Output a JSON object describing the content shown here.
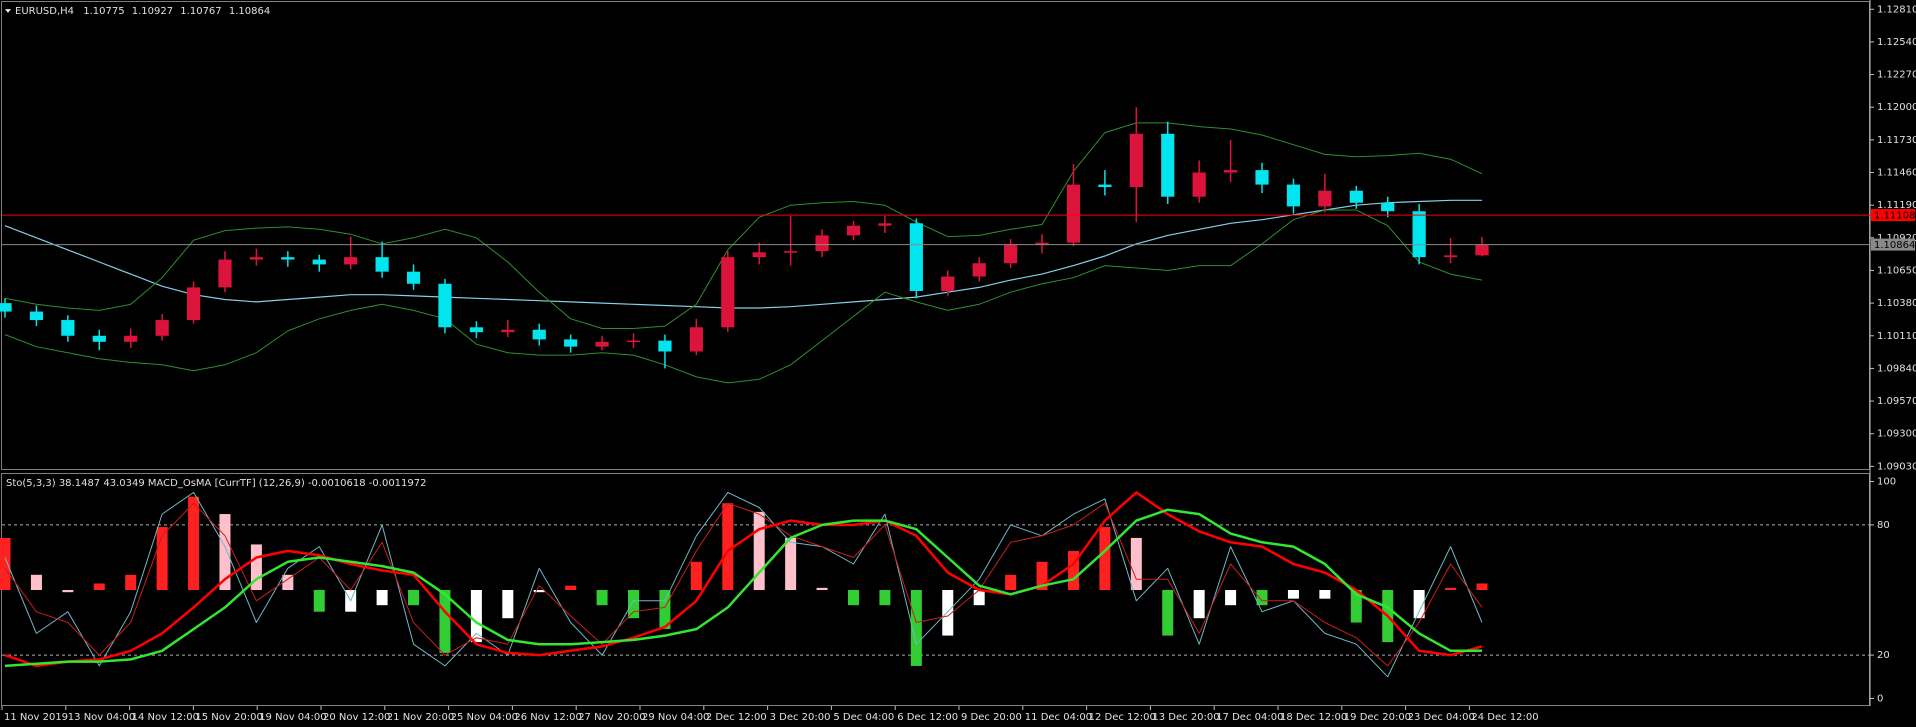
{
  "chart_data": [
    {
      "type": "candlestick",
      "title": "EURUSD,H4",
      "open": [
        1.1038,
        1.1031,
        1.1024,
        1.1011,
        1.1006,
        1.1011,
        1.1024,
        1.1051,
        1.1074,
        1.1076,
        1.1074,
        1.107,
        1.1076,
        1.1064,
        1.1054,
        1.1018,
        1.1014,
        1.1016,
        1.1008,
        1.1002,
        1.1006,
        1.1007,
        1.0998,
        1.1018,
        1.1076,
        1.108,
        1.1081,
        1.1094,
        1.1102,
        1.1104,
        1.1048,
        1.106,
        1.1071,
        1.1086,
        1.1088,
        1.1136,
        1.1134,
        1.1178,
        1.1126,
        1.1146,
        1.1148,
        1.1136,
        1.1118,
        1.1131,
        1.1121,
        1.1114,
        1.1076,
        1.10775
      ],
      "high": [
        1.1042,
        1.1036,
        1.1028,
        1.1016,
        1.1017,
        1.1029,
        1.1056,
        1.1081,
        1.1083,
        1.1081,
        1.1078,
        1.1093,
        1.1089,
        1.107,
        1.1058,
        1.1023,
        1.1024,
        1.1021,
        1.1012,
        1.1011,
        1.1013,
        1.1012,
        1.1025,
        1.1081,
        1.1088,
        1.111,
        1.1099,
        1.1106,
        1.111,
        1.1108,
        1.1065,
        1.1076,
        1.1091,
        1.1095,
        1.1153,
        1.1148,
        1.12,
        1.1188,
        1.1156,
        1.1173,
        1.1154,
        1.1141,
        1.1145,
        1.1135,
        1.1126,
        1.112,
        1.1092,
        1.10927
      ],
      "low": [
        1.1026,
        1.1019,
        1.1006,
        1.0999,
        1.1001,
        1.1007,
        1.1021,
        1.1047,
        1.1069,
        1.1068,
        1.1064,
        1.1066,
        1.1059,
        1.1049,
        1.1013,
        1.1009,
        1.101,
        1.1003,
        1.0997,
        1.0999,
        1.1001,
        1.0984,
        1.0995,
        1.1014,
        1.107,
        1.1069,
        1.1076,
        1.109,
        1.1096,
        1.1042,
        1.1044,
        1.1056,
        1.1067,
        1.1079,
        1.1085,
        1.1127,
        1.1105,
        1.112,
        1.1121,
        1.1138,
        1.1129,
        1.1112,
        1.1113,
        1.1116,
        1.1109,
        1.107,
        1.1071,
        1.10767
      ],
      "close": [
        1.1031,
        1.1024,
        1.1011,
        1.1006,
        1.1011,
        1.1024,
        1.1051,
        1.1074,
        1.1076,
        1.1074,
        1.107,
        1.1076,
        1.1064,
        1.1054,
        1.1018,
        1.1014,
        1.1016,
        1.1008,
        1.1002,
        1.1006,
        1.1007,
        1.0998,
        1.1018,
        1.1076,
        1.108,
        1.1081,
        1.1094,
        1.1102,
        1.1104,
        1.1048,
        1.106,
        1.1071,
        1.1086,
        1.1088,
        1.1136,
        1.1134,
        1.1178,
        1.1126,
        1.1146,
        1.1148,
        1.1136,
        1.1118,
        1.1131,
        1.1121,
        1.1114,
        1.1076,
        1.10775,
        1.10864
      ],
      "up_color": "#dc143c",
      "down_color": "#00e5ee",
      "series": [
        {
          "color": "#87ceeb",
          "width": 1.2,
          "values": [
            1.1102,
            1.1092,
            1.1082,
            1.1072,
            1.1062,
            1.1052,
            1.1045,
            1.1041,
            1.1039,
            1.1041,
            1.1043,
            1.1045,
            1.1045,
            1.1044,
            1.1043,
            1.1042,
            1.1041,
            1.104,
            1.1039,
            1.1038,
            1.1037,
            1.1036,
            1.1035,
            1.1034,
            1.1034,
            1.1035,
            1.1037,
            1.1039,
            1.1041,
            1.1043,
            1.1047,
            1.1051,
            1.1057,
            1.1062,
            1.1069,
            1.1077,
            1.1087,
            1.1094,
            1.1099,
            1.1104,
            1.1107,
            1.1111,
            1.1115,
            1.1119,
            1.1121,
            1.1122,
            1.1123,
            1.1123
          ]
        },
        {
          "color": "#2f8f2f",
          "width": 1,
          "values": [
            1.1042,
            1.1037,
            1.1034,
            1.1032,
            1.1037,
            1.1059,
            1.109,
            1.1098,
            1.11,
            1.1101,
            1.1099,
            1.1095,
            1.1087,
            1.1092,
            1.1099,
            1.1092,
            1.1072,
            1.1047,
            1.1025,
            1.1017,
            1.1017,
            1.1019,
            1.1037,
            1.1082,
            1.1109,
            1.1119,
            1.1121,
            1.1122,
            1.1119,
            1.1105,
            1.1093,
            1.1094,
            1.1099,
            1.1103,
            1.1147,
            1.1179,
            1.1187,
            1.1187,
            1.1184,
            1.1182,
            1.1177,
            1.1169,
            1.1161,
            1.1159,
            1.116,
            1.1162,
            1.1157,
            1.1145
          ]
        },
        {
          "color": "#2f8f2f",
          "width": 1,
          "values": [
            1.1012,
            1.1002,
            1.0997,
            1.0992,
            1.0989,
            1.0987,
            1.0982,
            1.0987,
            1.0997,
            1.1015,
            1.1025,
            1.1032,
            1.1037,
            1.1032,
            1.1025,
            1.1004,
            1.0997,
            1.0995,
            1.0995,
            1.0997,
            1.0995,
            1.0987,
            1.0977,
            1.0972,
            1.0975,
            1.0987,
            1.1007,
            1.1027,
            1.1047,
            1.1039,
            1.1032,
            1.1037,
            1.1047,
            1.1054,
            1.1059,
            1.1069,
            1.1067,
            1.1065,
            1.1069,
            1.1069,
            1.1087,
            1.1107,
            1.1115,
            1.1115,
            1.1102,
            1.1072,
            1.1062,
            1.1057
          ]
        }
      ],
      "price_lines": [
        {
          "value": 1.11108,
          "color": "#ff0000",
          "text_color": "#000000"
        },
        {
          "value": 1.10864,
          "color": "#8a8a8a",
          "text_color": "#000000"
        }
      ],
      "ylim": [
        1.09,
        1.1287
      ],
      "yticks": [
        {
          "value": 1.1281,
          "label": "1.12810"
        },
        {
          "value": 1.1254,
          "label": "1.12540"
        },
        {
          "value": 1.1227,
          "label": "1.12270"
        },
        {
          "value": 1.12,
          "label": "1.12000"
        },
        {
          "value": 1.1173,
          "label": "1.11730"
        },
        {
          "value": 1.1146,
          "label": "1.11460"
        },
        {
          "value": 1.1119,
          "label": "1.11190"
        },
        {
          "value": 1.1092,
          "label": "1.10920"
        },
        {
          "value": 1.1065,
          "label": "1.10650"
        },
        {
          "value": 1.1038,
          "label": "1.10380"
        },
        {
          "value": 1.1011,
          "label": "1.10110"
        },
        {
          "value": 1.0984,
          "label": "1.09840"
        },
        {
          "value": 1.0957,
          "label": "1.09570"
        },
        {
          "value": 1.093,
          "label": "1.09300"
        },
        {
          "value": 1.0903,
          "label": "1.09030"
        }
      ],
      "x_labels": [
        "11 Nov 2019",
        "13 Nov 04:00",
        "14 Nov 12:00",
        "15 Nov 20:00",
        "19 Nov 04:00",
        "20 Nov 12:00",
        "21 Nov 20:00",
        "25 Nov 04:00",
        "26 Nov 12:00",
        "27 Nov 20:00",
        "29 Nov 04:00",
        "2 Dec 12:00",
        "3 Dec 20:00",
        "5 Dec 04:00",
        "6 Dec 12:00",
        "9 Dec 20:00",
        "11 Dec 04:00",
        "12 Dec 12:00",
        "13 Dec 20:00",
        "17 Dec 04:00",
        "18 Dec 12:00",
        "19 Dec 20:00",
        "23 Dec 04:00",
        "24 Dec 12:00"
      ]
    },
    {
      "type": "combo",
      "title": "Sto(5,3,3) 38.1487 43.0349  MACD_OsMA [CurrTF] (12,26,9) -0.0010618 -0.0011972",
      "ylim": [
        -3,
        103
      ],
      "yticks": [
        0,
        20,
        80,
        100
      ],
      "levels": [
        20,
        80
      ],
      "series": [
        {
          "kind": "bar",
          "color": "#ff2020",
          "colors": [
            "#ff2020",
            "#ffc0cb",
            "#ffc0cb",
            "#ff2020",
            "#ff2020",
            "#ff2020",
            "#ff2020",
            "#ffc0cb",
            "#ffc0cb",
            "#ffc0cb",
            "#32cd32",
            "#ffffff",
            "#ffffff",
            "#32cd32",
            "#32cd32",
            "#ffffff",
            "#ffffff",
            "#ffffff",
            "#ff2020",
            "#32cd32",
            "#32cd32",
            "#32cd32",
            "#ff2020",
            "#ff2020",
            "#ffc0cb",
            "#ffc0cb",
            "#ffc0cb",
            "#32cd32",
            "#32cd32",
            "#32cd32",
            "#ffffff",
            "#ffffff",
            "#ff2020",
            "#ff2020",
            "#ff2020",
            "#ff2020",
            "#ffc0cb",
            "#32cd32",
            "#ffffff",
            "#ffffff",
            "#32cd32",
            "#ffffff",
            "#ffffff",
            "#32cd32",
            "#32cd32",
            "#ffffff",
            "#ff2020",
            "#ff2020"
          ],
          "values": [
            74,
            57,
            49,
            53,
            57,
            79,
            93,
            85,
            71,
            57,
            40,
            40,
            43,
            43,
            21,
            26,
            37,
            49,
            52,
            43,
            37,
            32,
            63,
            90,
            86,
            74,
            51,
            43,
            43,
            15,
            29,
            43,
            57,
            63,
            68,
            79,
            74,
            29,
            37,
            43,
            43,
            46,
            46,
            35,
            26,
            37,
            51,
            53
          ]
        },
        {
          "kind": "line",
          "color": "#6fb7c7",
          "width": 1,
          "values": [
            65,
            30,
            40,
            15,
            40,
            85,
            95,
            70,
            35,
            60,
            70,
            45,
            80,
            25,
            15,
            30,
            20,
            60,
            35,
            20,
            45,
            45,
            75,
            95,
            88,
            72,
            70,
            62,
            85,
            25,
            40,
            55,
            80,
            75,
            85,
            92,
            45,
            60,
            25,
            70,
            40,
            45,
            30,
            25,
            10,
            40,
            70,
            35
          ]
        },
        {
          "kind": "line",
          "color": "#c81e1e",
          "width": 1,
          "values": [
            60,
            40,
            35,
            20,
            35,
            75,
            90,
            75,
            45,
            55,
            65,
            50,
            72,
            35,
            20,
            28,
            25,
            52,
            38,
            25,
            40,
            42,
            68,
            90,
            85,
            75,
            70,
            65,
            80,
            35,
            38,
            50,
            72,
            75,
            80,
            90,
            55,
            55,
            30,
            62,
            45,
            45,
            35,
            28,
            15,
            35,
            62,
            42
          ]
        },
        {
          "kind": "line",
          "color": "#ff0000",
          "width": 2.5,
          "values": [
            20,
            15,
            17,
            18,
            22,
            30,
            42,
            55,
            65,
            68,
            66,
            62,
            59,
            57,
            40,
            25,
            21,
            20,
            22,
            24,
            28,
            33,
            45,
            68,
            78,
            82,
            80,
            80,
            82,
            75,
            58,
            50,
            48,
            52,
            62,
            82,
            95,
            85,
            77,
            72,
            70,
            62,
            58,
            50,
            38,
            22,
            20,
            24
          ]
        },
        {
          "kind": "line",
          "color": "#32e632",
          "width": 2.5,
          "values": [
            15,
            16,
            17,
            17,
            18,
            22,
            32,
            42,
            55,
            63,
            65,
            63,
            61,
            58,
            48,
            35,
            27,
            25,
            25,
            26,
            27,
            29,
            32,
            42,
            58,
            74,
            80,
            82,
            82,
            78,
            65,
            52,
            48,
            52,
            55,
            68,
            82,
            87,
            85,
            76,
            72,
            70,
            62,
            48,
            42,
            30,
            22,
            22
          ]
        }
      ]
    }
  ]
}
